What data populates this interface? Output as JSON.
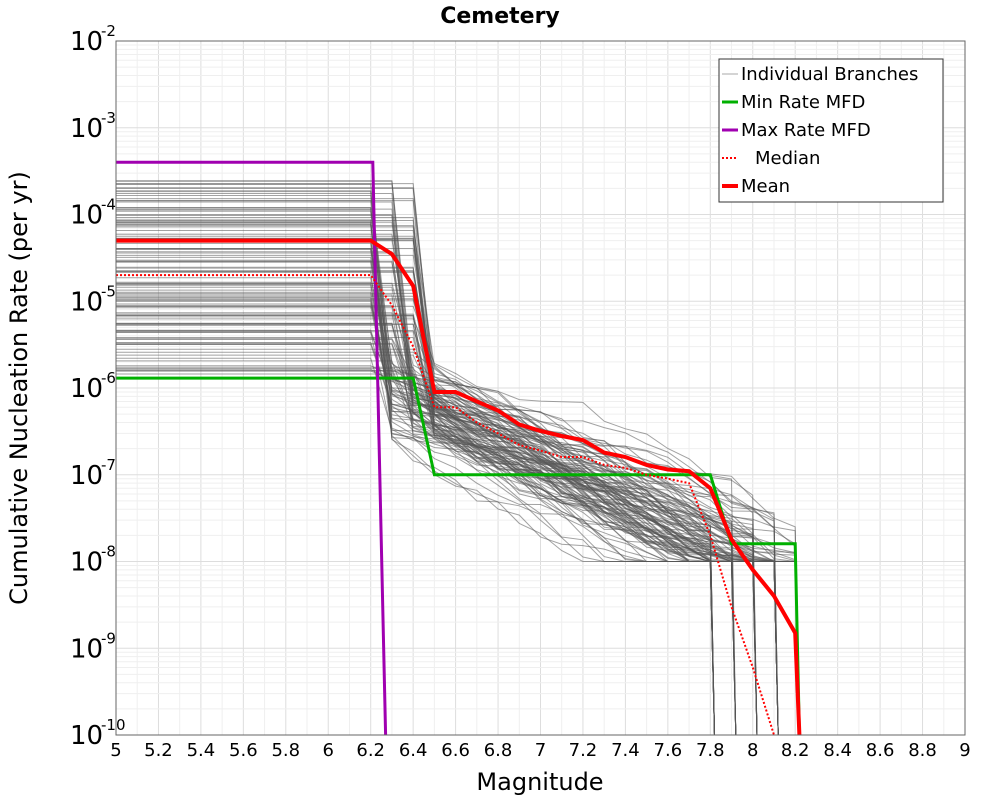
{
  "chart_data": {
    "type": "line",
    "title": "Cemetery",
    "xlabel": "Magnitude",
    "ylabel": "Cumulative Nucleation Rate (per yr)",
    "xlim": [
      5,
      9
    ],
    "ylim": [
      1e-10,
      0.01
    ],
    "yscale": "log",
    "grid": true,
    "legend_position": "top-right",
    "x_ticks": [
      "5",
      "5.2",
      "5.4",
      "5.6",
      "5.8",
      "6",
      "6.2",
      "6.4",
      "6.6",
      "6.8",
      "7",
      "7.2",
      "7.4",
      "7.6",
      "7.8",
      "8",
      "8.2",
      "8.4",
      "8.6",
      "8.8",
      "9"
    ],
    "y_ticks": [
      {
        "base": "10",
        "exp": "-10",
        "value": 1e-10
      },
      {
        "base": "10",
        "exp": "-9",
        "value": 1e-09
      },
      {
        "base": "10",
        "exp": "-8",
        "value": 1e-08
      },
      {
        "base": "10",
        "exp": "-7",
        "value": 1e-07
      },
      {
        "base": "10",
        "exp": "-6",
        "value": 1e-06
      },
      {
        "base": "10",
        "exp": "-5",
        "value": 1e-05
      },
      {
        "base": "10",
        "exp": "-4",
        "value": 0.0001
      },
      {
        "base": "10",
        "exp": "-3",
        "value": 0.001
      },
      {
        "base": "10",
        "exp": "-2",
        "value": 0.01
      }
    ],
    "series": [
      {
        "name": "Min Rate MFD",
        "color": "#00b000",
        "style": "solid",
        "x": [
          5,
          6.22,
          6.4,
          6.5,
          7.8,
          7.9,
          8.2,
          8.22
        ],
        "y": [
          1.3e-06,
          1.3e-06,
          1.3e-06,
          1e-07,
          1e-07,
          1.6e-08,
          1.6e-08,
          1e-10
        ]
      },
      {
        "name": "Max Rate MFD",
        "color": "#a000b0",
        "style": "solid",
        "x": [
          5,
          6.21,
          6.27
        ],
        "y": [
          0.0004,
          0.0004,
          1e-10
        ]
      },
      {
        "name": "Median",
        "color": "#ff0000",
        "style": "dotted",
        "x": [
          5,
          6.2,
          6.3,
          6.4,
          6.5,
          6.6,
          6.7,
          6.8,
          6.9,
          7.0,
          7.1,
          7.2,
          7.3,
          7.4,
          7.5,
          7.6,
          7.7,
          7.8,
          7.9,
          8.0,
          8.1
        ],
        "y": [
          2e-05,
          2e-05,
          9e-06,
          3e-06,
          6e-07,
          6e-07,
          4e-07,
          3e-07,
          2.2e-07,
          1.9e-07,
          1.6e-07,
          1.6e-07,
          1.3e-07,
          1.2e-07,
          1e-07,
          9e-08,
          8e-08,
          2e-08,
          3e-09,
          6e-10,
          1e-10
        ]
      },
      {
        "name": "Mean",
        "color": "#ff0000",
        "style": "solid",
        "x": [
          5,
          6.2,
          6.3,
          6.4,
          6.5,
          6.6,
          6.7,
          6.8,
          6.9,
          7.0,
          7.1,
          7.2,
          7.3,
          7.4,
          7.5,
          7.6,
          7.7,
          7.8,
          7.9,
          8.0,
          8.1,
          8.2,
          8.22
        ],
        "y": [
          5e-05,
          5e-05,
          3.5e-05,
          1.5e-05,
          9e-07,
          9e-07,
          7e-07,
          5.5e-07,
          3.8e-07,
          3.2e-07,
          2.8e-07,
          2.5e-07,
          1.8e-07,
          1.6e-07,
          1.3e-07,
          1.15e-07,
          1.1e-07,
          7e-08,
          1.8e-08,
          8e-09,
          4e-09,
          1.5e-09,
          1e-10
        ]
      }
    ],
    "individual_branches": {
      "name": "Individual Branches",
      "color": "#555555",
      "count": 120,
      "description": "Many grey branch MFD curves"
    },
    "legend": [
      {
        "label": "Individual Branches",
        "color": "#aaaaaa",
        "style": "solid",
        "width": 1
      },
      {
        "label": "Min Rate MFD",
        "color": "#00b000",
        "style": "solid",
        "width": 3
      },
      {
        "label": "Max Rate MFD",
        "color": "#a000b0",
        "style": "solid",
        "width": 3
      },
      {
        "label": "Median",
        "color": "#ff0000",
        "style": "dotted",
        "width": 2
      },
      {
        "label": "Mean",
        "color": "#ff0000",
        "style": "solid",
        "width": 4
      }
    ]
  }
}
